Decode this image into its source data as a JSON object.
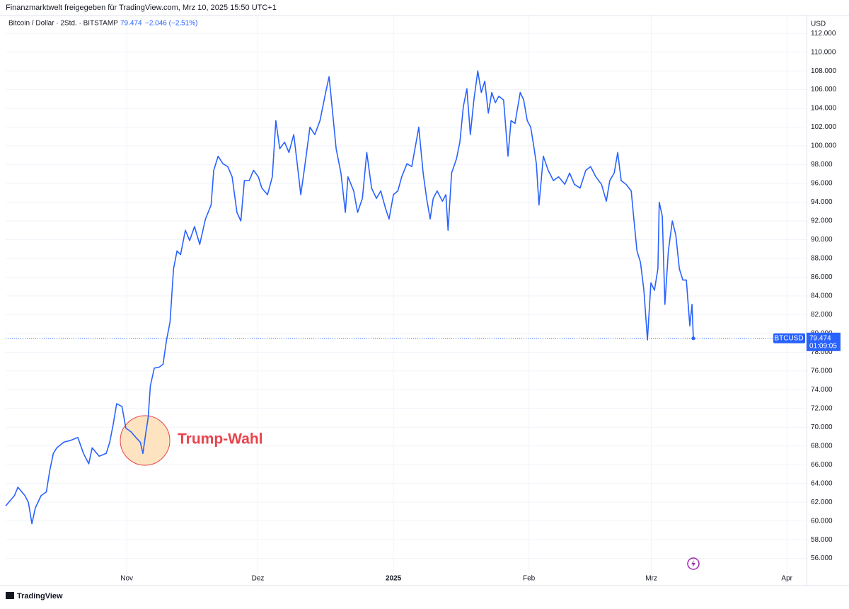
{
  "header": "Finanzmarktwelt freigegeben für TradingView.com, Mrz 10, 2025 15:50 UTC+1",
  "footer": "TradingView",
  "chart_data": {
    "type": "line",
    "title": "Bitcoin / Dollar · 2Std. · BITSTAMP",
    "change": "−2.046 (−2,51%)",
    "y_axis_label": "USD",
    "symbol": "BTCUSD",
    "countdown": "01:09:05",
    "annotation": "Trump-Wahl",
    "last_price": {
      "value": 79474,
      "label": "79.474"
    },
    "grid": true,
    "x": [
      3.3,
      5.3,
      6.1,
      7.7,
      8.5,
      9.3,
      10.1,
      11.4,
      12.6,
      13.4,
      14.2,
      15.0,
      16.6,
      18.2,
      19.8,
      21.1,
      22.3,
      23.1,
      24.7,
      26.3,
      27.1,
      27.9,
      28.7,
      29.9,
      30.8,
      32.0,
      33.1,
      34.1,
      34.7,
      35.4,
      35.9,
      36.4,
      37.3,
      38.4,
      39.3,
      40.1,
      40.9,
      41.7,
      42.5,
      43.3,
      44.4,
      45.4,
      46.5,
      47.7,
      49.0,
      50.3,
      50.9,
      51.9,
      53.0,
      54.1,
      55.1,
      56.2,
      57.1,
      57.9,
      59.0,
      60.0,
      61.1,
      61.9,
      63.2,
      64.3,
      65.1,
      66.0,
      67.1,
      68.1,
      69.2,
      70.0,
      70.8,
      71.6,
      72.9,
      74.0,
      75.2,
      76.5,
      77.3,
      78.1,
      78.9,
      80.0,
      81.0,
      81.6,
      82.9,
      83.8,
      84.9,
      85.9,
      87.0,
      88.1,
      89.1,
      90.2,
      91.0,
      92.0,
      93.0,
      93.9,
      95.1,
      96.2,
      97.2,
      97.8,
      98.8,
      99.6,
      100.4,
      101.1,
      102.0,
      103.2,
      104.0,
      104.5,
      105.3,
      106.4,
      107.2,
      108.0,
      108.8,
      109.6,
      110.4,
      111.3,
      112.1,
      112.9,
      113.7,
      114.5,
      115.3,
      116.1,
      117.2,
      118.2,
      118.9,
      119.8,
      121.0,
      121.8,
      122.6,
      123.4,
      124.2,
      124.7,
      125.3,
      126.3,
      127.4,
      128.6,
      129.8,
      131.2,
      132.3,
      133.4,
      134.7,
      136.0,
      137.1,
      138.3,
      139.6,
      140.7,
      141.5,
      142.5,
      143.3,
      144.1,
      145.2,
      146.4,
      147.0,
      147.7,
      148.5,
      149.3,
      150.1,
      150.9,
      151.7,
      152.5,
      152.8,
      153.5,
      154.1,
      154.9,
      155.8,
      156.6,
      157.4,
      158.2,
      159.0,
      159.8,
      160.3,
      160.6
    ],
    "series": [
      {
        "name": "BTCUSD",
        "color": "#2962ff",
        "values": [
          61600,
          62700,
          63600,
          62700,
          62000,
          59700,
          61400,
          62700,
          63100,
          65400,
          67200,
          67800,
          68400,
          68600,
          68900,
          67200,
          66100,
          67800,
          66900,
          67200,
          68400,
          70300,
          72500,
          72200,
          69900,
          69500,
          68900,
          68400,
          67200,
          69500,
          71000,
          74400,
          76300,
          76400,
          76700,
          79300,
          81200,
          86900,
          88800,
          88400,
          91000,
          89900,
          91400,
          89500,
          92200,
          93700,
          97400,
          98900,
          98100,
          97800,
          96700,
          92900,
          92000,
          96300,
          96300,
          97400,
          96700,
          95500,
          94800,
          96700,
          102700,
          99700,
          100400,
          99300,
          101200,
          98100,
          94800,
          97400,
          102000,
          101200,
          102700,
          105700,
          107400,
          103500,
          99700,
          97100,
          92900,
          96700,
          95200,
          92900,
          94400,
          99300,
          95500,
          94400,
          95200,
          93300,
          92200,
          94800,
          95200,
          96700,
          98100,
          97800,
          100400,
          102000,
          97100,
          94400,
          92200,
          94400,
          95200,
          94100,
          94800,
          91000,
          97100,
          98600,
          100400,
          104200,
          106100,
          101200,
          104900,
          108000,
          105700,
          106900,
          103500,
          105700,
          104600,
          105300,
          104900,
          98900,
          102700,
          102400,
          105700,
          104900,
          102700,
          102000,
          99700,
          98100,
          93700,
          98900,
          97400,
          96300,
          96700,
          95900,
          97100,
          95900,
          95500,
          97400,
          97800,
          96700,
          95900,
          94100,
          96300,
          97100,
          99300,
          96300,
          95900,
          95200,
          92200,
          88800,
          87600,
          84600,
          79300,
          85400,
          84600,
          86900,
          94000,
          92500,
          83100,
          88800,
          92000,
          90500,
          86900,
          85700,
          85700,
          80800,
          83100,
          79474
        ]
      }
    ],
    "xlim": [
      3.3,
      186.5
    ],
    "xticks": [
      {
        "value": 31,
        "label": "Nov"
      },
      {
        "value": 61,
        "label": "Dez"
      },
      {
        "value": 92,
        "label": "2025"
      },
      {
        "value": 123,
        "label": "Feb"
      },
      {
        "value": 151,
        "label": "Mrz"
      },
      {
        "value": 182,
        "label": "Apr"
      }
    ],
    "ylim": [
      53100,
      113900
    ],
    "yticks": [
      {
        "value": 56000,
        "label": "56.000"
      },
      {
        "value": 58000,
        "label": "58.000"
      },
      {
        "value": 60000,
        "label": "60.000"
      },
      {
        "value": 62000,
        "label": "62.000"
      },
      {
        "value": 64000,
        "label": "64.000"
      },
      {
        "value": 66000,
        "label": "66.000"
      },
      {
        "value": 68000,
        "label": "68.000"
      },
      {
        "value": 70000,
        "label": "70.000"
      },
      {
        "value": 72000,
        "label": "72.000"
      },
      {
        "value": 74000,
        "label": "74.000"
      },
      {
        "value": 76000,
        "label": "76.000"
      },
      {
        "value": 78000,
        "label": "78.000"
      },
      {
        "value": 80000,
        "label": "80.000"
      },
      {
        "value": 82000,
        "label": "82.000"
      },
      {
        "value": 84000,
        "label": "84.000"
      },
      {
        "value": 86000,
        "label": "86.000"
      },
      {
        "value": 88000,
        "label": "88.000"
      },
      {
        "value": 90000,
        "label": "90.000"
      },
      {
        "value": 92000,
        "label": "92.000"
      },
      {
        "value": 94000,
        "label": "94.000"
      },
      {
        "value": 96000,
        "label": "96.000"
      },
      {
        "value": 98000,
        "label": "98.000"
      },
      {
        "value": 100000,
        "label": "100.000"
      },
      {
        "value": 102000,
        "label": "102.000"
      },
      {
        "value": 104000,
        "label": "104.000"
      },
      {
        "value": 106000,
        "label": "106.000"
      },
      {
        "value": 108000,
        "label": "108.000"
      },
      {
        "value": 110000,
        "label": "110.000"
      },
      {
        "value": 112000,
        "label": "112.000"
      }
    ]
  }
}
